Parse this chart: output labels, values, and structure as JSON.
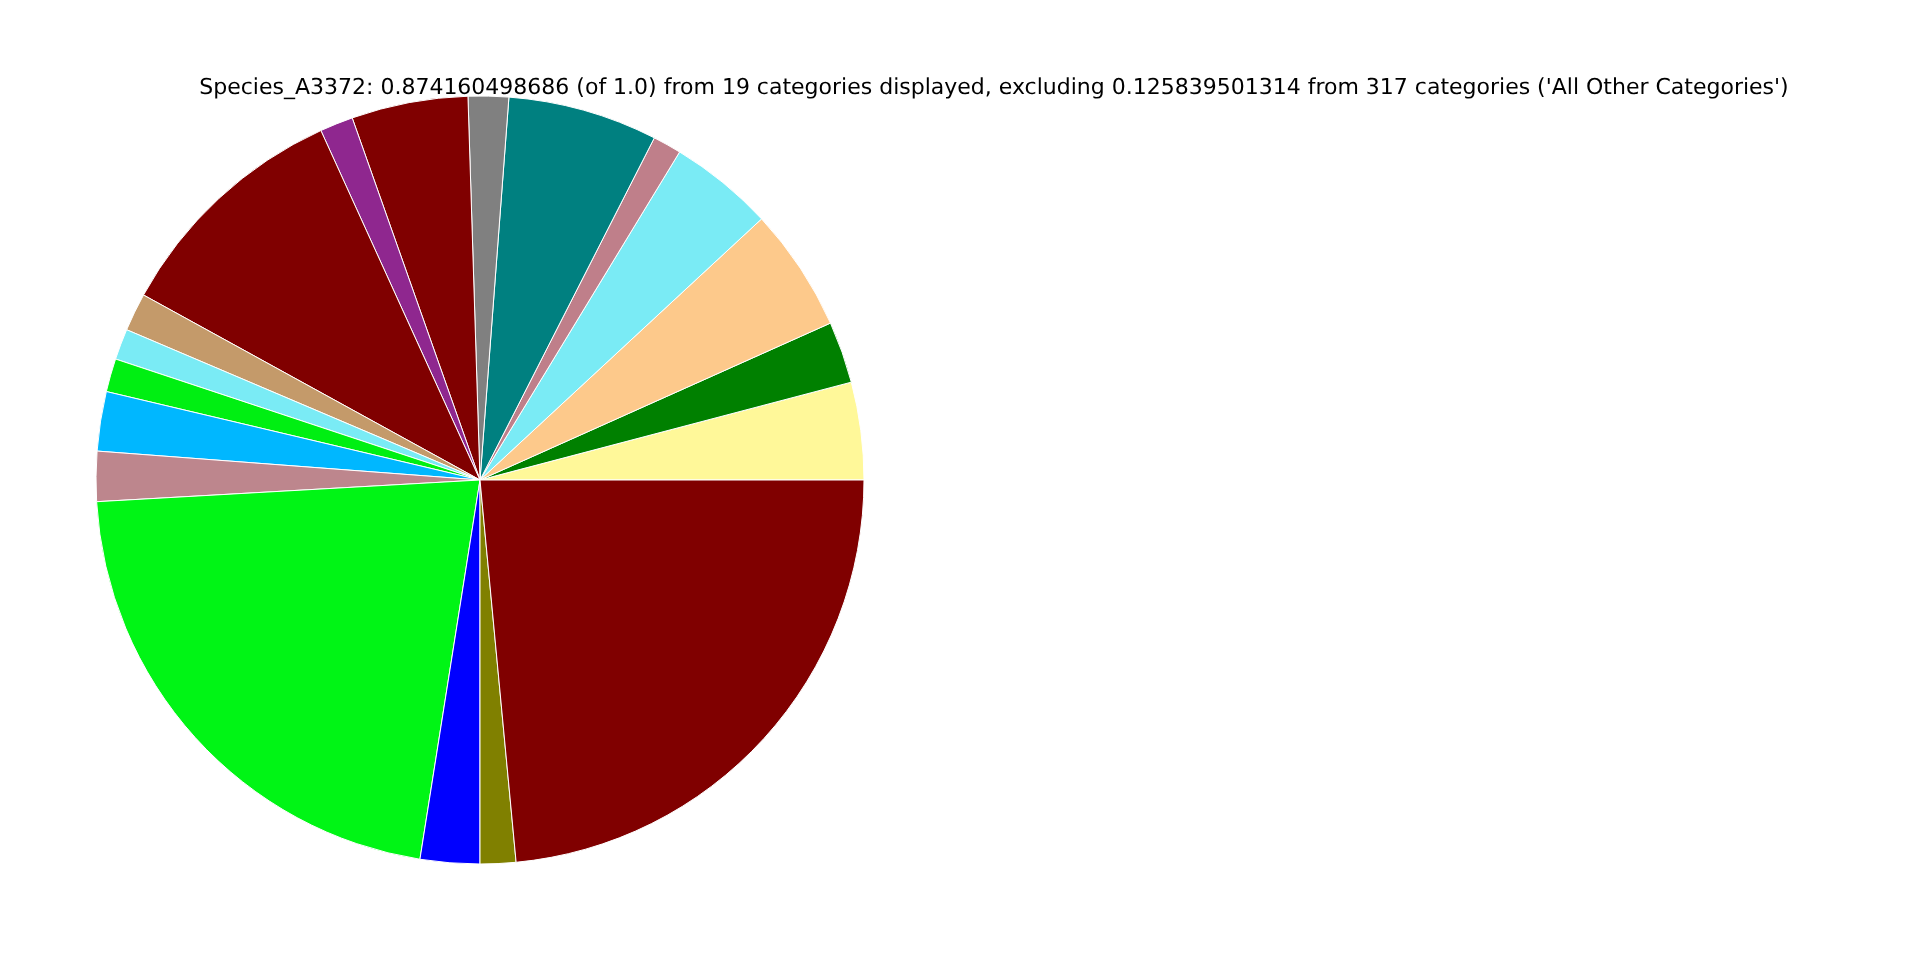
{
  "chart_data": {
    "type": "pie",
    "title": "Species_A3372: 0.874160498686 (of 1.0) from 19 categories displayed, excluding 0.125839501314 from 317 categories ('All Other Categories')",
    "categories": [
      null,
      null,
      null,
      null,
      null,
      null,
      null,
      null,
      null,
      null,
      null,
      null,
      null,
      null,
      null,
      null,
      null,
      null,
      null
    ],
    "values": [
      4.1,
      2.6,
      5.2,
      4.4,
      1.2,
      6.3,
      1.7,
      4.9,
      1.4,
      10.2,
      1.6,
      1.3,
      1.4,
      2.5,
      2.1,
      21.6,
      2.5,
      1.5,
      23.5
    ],
    "colors": [
      "#fff899",
      "#008000",
      "#fdc98b",
      "#7aebf5",
      "#bf7f8a",
      "#008080",
      "#808080",
      "#800000",
      "#8f278f",
      "#800000",
      "#c49a6a",
      "#7aebf5",
      "#00ef12",
      "#00b7ff",
      "#bd868d",
      "#00f515",
      "#0000ff",
      "#808000",
      "#800000"
    ]
  }
}
